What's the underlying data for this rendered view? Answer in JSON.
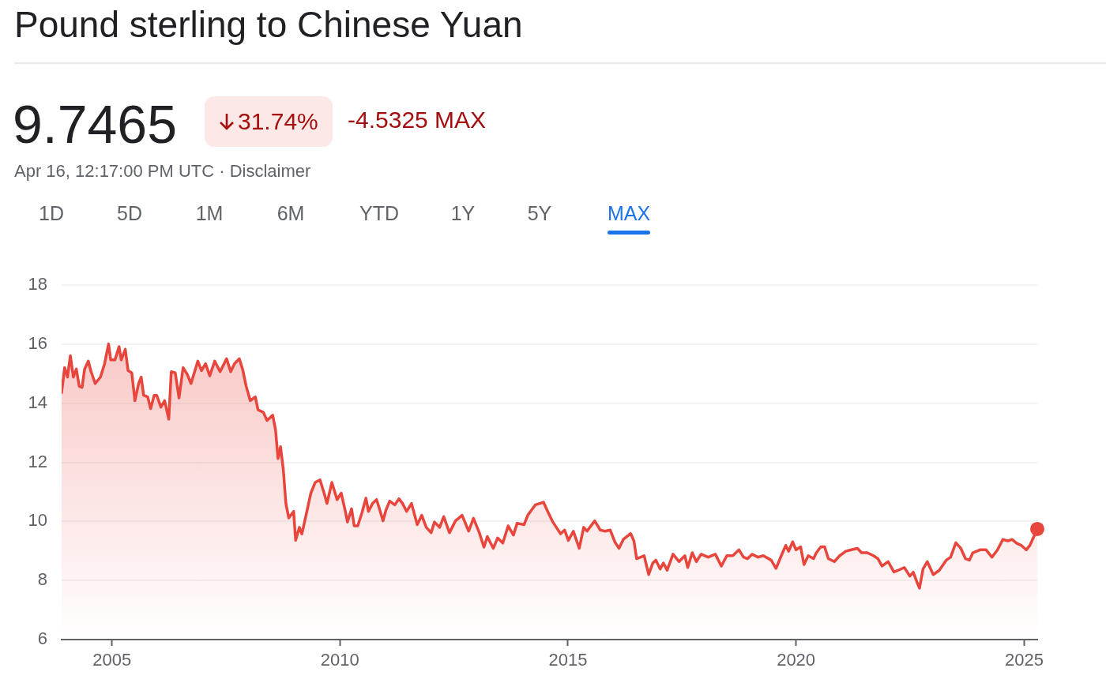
{
  "chart_data": {
    "type": "area",
    "title": "Pound sterling to Chinese Yuan",
    "annotations": [
      "9.7465",
      "31.74%",
      "-4.5325 MAX",
      "Apr 16, 12:17:00 PM UTC · Disclaimer",
      "1D",
      "5D",
      "1M",
      "6M",
      "YTD",
      "1Y",
      "5Y",
      "MAX"
    ],
    "xlim": [
      "2003-11-25",
      "2025-04-16"
    ],
    "xticks": [
      "2005",
      "2010",
      "2015",
      "2020",
      "2025"
    ],
    "ylim": [
      6,
      18
    ],
    "yticks": [
      6,
      8,
      10,
      12,
      14,
      16,
      18
    ],
    "grid": "y",
    "series": [
      {
        "color": "#e8453c",
        "x": [
          "2003-11-25",
          "2003-12-19",
          "2004-01-11",
          "2004-02-03",
          "2004-02-27",
          "2004-03-22",
          "2004-04-14",
          "2004-05-07",
          "2004-05-27",
          "2004-06-26",
          "2004-07-18",
          "2004-08-20",
          "2004-10-01",
          "2004-11-03",
          "2004-12-05",
          "2004-12-22",
          "2005-01-25",
          "2005-02-27",
          "2005-03-16",
          "2005-04-18",
          "2005-05-10",
          "2005-06-09",
          "2005-07-04",
          "2005-08-03",
          "2005-08-23",
          "2005-09-12",
          "2005-10-14",
          "2005-11-07",
          "2005-12-05",
          "2005-12-26",
          "2006-01-28",
          "2006-02-27",
          "2006-04-01",
          "2006-04-21",
          "2006-05-23",
          "2006-06-22",
          "2006-07-25",
          "2006-08-27",
          "2006-09-26",
          "2006-11-20",
          "2006-12-19",
          "2007-01-21",
          "2007-02-23",
          "2007-04-04",
          "2007-05-17",
          "2007-07-08",
          "2007-08-10",
          "2007-09-09",
          "2007-10-18",
          "2007-11-13",
          "2007-12-12",
          "2008-01-14",
          "2008-02-23",
          "2008-03-16",
          "2008-04-28",
          "2008-05-27",
          "2008-07-11",
          "2008-08-03",
          "2008-08-23",
          "2008-09-12",
          "2008-10-04",
          "2008-10-25",
          "2008-11-17",
          "2008-12-26",
          "2009-01-11",
          "2009-02-10",
          "2009-03-02",
          "2009-04-11",
          "2009-05-13",
          "2009-06-16",
          "2009-07-25",
          "2009-08-27",
          "2009-09-19",
          "2009-10-28",
          "2009-12-09",
          "2010-01-11",
          "2010-02-13",
          "2010-03-02",
          "2010-04-04",
          "2010-04-25",
          "2010-05-23",
          "2010-06-26",
          "2010-07-28",
          "2010-08-17",
          "2010-09-19",
          "2010-10-21",
          "2010-11-13",
          "2010-12-12",
          "2011-01-04",
          "2011-02-03",
          "2011-03-16",
          "2011-04-18",
          "2011-05-17",
          "2011-06-19",
          "2011-07-28",
          "2011-09-12",
          "2011-10-18",
          "2011-11-23",
          "2012-01-01",
          "2012-01-28",
          "2012-03-09",
          "2012-04-11",
          "2012-05-27",
          "2012-07-14",
          "2012-09-05",
          "2012-10-28",
          "2012-12-05",
          "2013-01-21",
          "2013-02-27",
          "2013-03-26",
          "2013-05-13",
          "2013-06-16",
          "2013-07-28",
          "2013-09-09",
          "2013-10-21",
          "2013-11-20",
          "2014-01-14",
          "2014-02-13",
          "2014-04-14",
          "2014-06-19",
          "2014-07-18",
          "2014-09-02",
          "2014-11-03",
          "2014-12-05",
          "2015-01-04",
          "2015-02-13",
          "2015-04-01",
          "2015-05-07",
          "2015-06-02",
          "2015-08-03",
          "2015-09-16",
          "2015-10-25",
          "2015-12-05",
          "2016-01-11",
          "2016-02-13",
          "2016-03-19",
          "2016-05-17",
          "2016-06-12",
          "2016-07-04",
          "2016-09-02",
          "2016-10-08",
          "2016-11-10",
          "2016-12-05",
          "2017-01-08",
          "2017-02-03",
          "2017-03-05",
          "2017-04-21",
          "2017-06-09",
          "2017-07-25",
          "2017-08-17",
          "2017-09-22",
          "2017-10-25",
          "2017-12-02",
          "2018-01-28",
          "2018-03-26",
          "2018-05-13",
          "2018-06-26",
          "2018-08-13",
          "2018-10-01",
          "2018-11-07",
          "2018-12-09",
          "2019-01-14",
          "2019-03-02",
          "2019-04-14",
          "2019-06-16",
          "2019-07-25",
          "2019-09-05",
          "2019-10-11",
          "2019-11-03",
          "2019-12-05",
          "2020-01-01",
          "2020-02-07",
          "2020-03-05",
          "2020-04-08",
          "2020-05-20",
          "2020-06-12",
          "2020-07-18",
          "2020-08-17",
          "2020-09-16",
          "2020-11-03",
          "2020-12-16",
          "2021-02-03",
          "2021-03-19",
          "2021-05-07",
          "2021-06-09",
          "2021-07-25",
          "2021-09-12",
          "2021-10-18",
          "2021-11-20",
          "2022-01-08",
          "2022-02-23",
          "2022-03-26",
          "2022-05-17",
          "2022-07-01",
          "2022-07-28",
          "2022-08-27",
          "2022-09-16",
          "2022-10-14",
          "2022-11-17",
          "2023-01-04",
          "2023-02-20",
          "2023-04-18",
          "2023-05-23",
          "2023-07-04",
          "2023-08-13",
          "2023-09-19",
          "2023-10-21",
          "2023-11-17",
          "2024-01-14",
          "2024-03-02",
          "2024-04-18",
          "2024-06-02",
          "2024-07-14",
          "2024-08-23",
          "2024-09-26",
          "2024-11-03",
          "2024-12-09",
          "2025-01-18",
          "2025-02-16",
          "2025-03-09",
          "2025-04-16"
        ],
        "values": [
          14.36,
          15.21,
          14.89,
          15.61,
          14.89,
          15.16,
          14.58,
          14.54,
          15.16,
          15.43,
          15.07,
          14.67,
          14.89,
          15.34,
          16.01,
          15.47,
          15.47,
          15.92,
          15.47,
          15.83,
          15.11,
          15.03,
          14.09,
          14.67,
          14.89,
          14.27,
          14.22,
          13.82,
          14.27,
          14.27,
          13.87,
          14.09,
          13.46,
          15.07,
          15.03,
          14.18,
          15.21,
          14.98,
          14.67,
          15.43,
          15.11,
          15.34,
          14.93,
          15.43,
          15.07,
          15.51,
          15.07,
          15.34,
          15.51,
          15.16,
          14.58,
          14.09,
          14.22,
          13.78,
          13.69,
          13.42,
          13.6,
          13.11,
          12.13,
          12.53,
          11.77,
          10.61,
          10.12,
          10.34,
          9.36,
          9.8,
          9.58,
          10.34,
          10.96,
          11.32,
          11.41,
          10.96,
          10.61,
          11.32,
          10.74,
          10.96,
          10.34,
          9.98,
          10.43,
          9.85,
          9.85,
          10.29,
          10.79,
          10.34,
          10.61,
          10.74,
          10.43,
          10.02,
          10.38,
          10.69,
          10.56,
          10.77,
          10.61,
          10.34,
          10.61,
          9.89,
          10.21,
          9.8,
          9.62,
          9.98,
          9.8,
          10.16,
          9.62,
          10.02,
          10.21,
          9.67,
          10.11,
          9.62,
          9.13,
          9.49,
          9.09,
          9.44,
          9.27,
          9.85,
          9.54,
          9.94,
          9.89,
          10.21,
          10.56,
          10.65,
          10.38,
          9.98,
          9.58,
          9.71,
          9.36,
          9.67,
          9.09,
          9.8,
          9.67,
          10.02,
          9.71,
          9.67,
          9.71,
          9.31,
          9.09,
          9.39,
          9.59,
          9.34,
          8.74,
          8.84,
          8.2,
          8.59,
          8.69,
          8.39,
          8.59,
          8.35,
          8.89,
          8.64,
          8.84,
          8.44,
          8.94,
          8.64,
          8.89,
          8.79,
          8.89,
          8.49,
          8.84,
          8.84,
          9.04,
          8.79,
          8.74,
          8.89,
          8.79,
          8.84,
          8.69,
          8.41,
          8.84,
          9.19,
          8.99,
          9.31,
          9.04,
          9.14,
          8.54,
          8.84,
          8.74,
          8.94,
          9.14,
          9.14,
          8.74,
          8.64,
          8.84,
          8.99,
          9.04,
          9.09,
          8.94,
          8.94,
          8.84,
          8.74,
          8.49,
          8.64,
          8.29,
          8.34,
          8.44,
          8.15,
          8.28,
          7.94,
          7.74,
          8.39,
          8.64,
          8.2,
          8.34,
          8.69,
          8.79,
          9.28,
          9.09,
          8.74,
          8.69,
          8.94,
          9.04,
          9.04,
          8.79,
          9.04,
          9.39,
          9.34,
          9.39,
          9.26,
          9.19,
          9.04,
          9.19,
          9.39,
          9.7465
        ]
      },
      {
        "type": "scatter",
        "marker": "circle",
        "color": "#e8453c",
        "x": [
          "2025-04-16"
        ],
        "values": [
          9.7465
        ]
      }
    ]
  }
}
